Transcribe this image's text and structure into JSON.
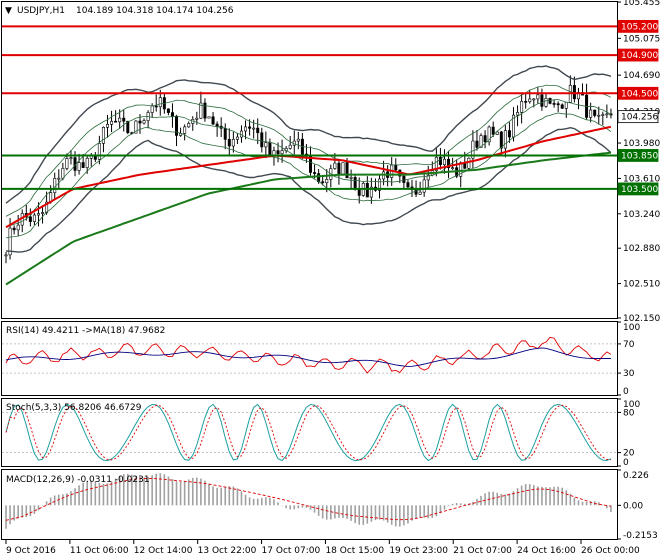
{
  "header": {
    "arrow": "▼",
    "symbol": "USDJPY,H1",
    "ohlc": "104.189 104.318 104.174 104.256"
  },
  "main_price_axis": [
    "105.455",
    "105.075",
    "104.690",
    "104.310",
    "103.980",
    "103.610",
    "103.240",
    "102.880",
    "102.510",
    "102.150"
  ],
  "price_tags": [
    {
      "label": "105.200",
      "value": 105.2,
      "kind": "level"
    },
    {
      "label": "104.900",
      "value": 104.9,
      "kind": "level"
    },
    {
      "label": "104.500",
      "value": 104.5,
      "kind": "level"
    },
    {
      "label": "104.256",
      "value": 104.256,
      "kind": "current"
    },
    {
      "label": "103.850",
      "value": 103.85,
      "kind": "support"
    },
    {
      "label": "103.500",
      "value": 103.5,
      "kind": "support"
    }
  ],
  "rsi": {
    "title": "RSI(14) 49.4211  ->MA(18) 47.9682",
    "axis": [
      "100",
      "70",
      "30",
      "0"
    ]
  },
  "stoch": {
    "title": "Stoch(5,3,3) 56.8206 46.6729",
    "axis": [
      "100",
      "80",
      "20",
      "0"
    ]
  },
  "macd": {
    "title": "MACD(12,26,9) -0.0311 -0.0231",
    "axis": [
      "0.226",
      "0.00",
      "-0.2153"
    ]
  },
  "time_axis": [
    "9 Oct 2016",
    "11 Oct 06:00",
    "12 Oct 14:00",
    "13 Oct 22:00",
    "17 Oct 07:00",
    "18 Oct 15:00",
    "19 Oct 23:00",
    "21 Oct 07:00",
    "24 Oct 16:00",
    "26 Oct 00:00"
  ],
  "colors": {
    "level": "#e00000",
    "support": "#007000",
    "ma_red": "#e00000",
    "ma_green": "#1a7a1a",
    "bands": "#404850",
    "candle": "#000000",
    "rsi": "#e00000",
    "rsi_ma": "#000080",
    "stoch_main": "#20a0a0",
    "stoch_signal": "#e00000",
    "macd_hist": "#a0a0a0",
    "macd_signal": "#e00000"
  },
  "chart_data": [
    {
      "type": "line",
      "title": "USDJPY,H1",
      "note": "candlestick price panel",
      "ylim": [
        102.15,
        105.455
      ],
      "x": [
        "9 Oct 2016",
        "11 Oct 06:00",
        "12 Oct 14:00",
        "13 Oct 22:00",
        "17 Oct 07:00",
        "18 Oct 15:00",
        "19 Oct 23:00",
        "21 Oct 07:00",
        "24 Oct 16:00",
        "26 Oct 00:00"
      ],
      "series": [
        {
          "values": [
            102.9,
            103.75,
            104.3,
            104.2,
            103.95,
            103.6,
            103.55,
            103.9,
            104.5,
            104.256
          ]
        },
        {
          "values": [
            103.1,
            103.5,
            103.65,
            103.75,
            103.85,
            103.8,
            103.65,
            103.8,
            104.0,
            104.15
          ]
        },
        {
          "values": [
            102.5,
            102.95,
            103.2,
            103.45,
            103.6,
            103.65,
            103.65,
            103.7,
            103.8,
            103.88
          ]
        }
      ],
      "levels": [
        105.2,
        104.9,
        104.5,
        103.85,
        103.5
      ]
    },
    {
      "type": "line",
      "ylim": [
        0,
        100
      ],
      "series": [
        {
          "values": [
            45,
            55,
            62,
            58,
            50,
            42,
            38,
            55,
            72,
            49.42
          ]
        },
        {
          "values": [
            48,
            52,
            58,
            56,
            52,
            46,
            42,
            50,
            62,
            47.97
          ]
        }
      ]
    },
    {
      "type": "line",
      "ylim": [
        0,
        100
      ],
      "series": [
        {
          "values": [
            30,
            75,
            85,
            60,
            40,
            20,
            55,
            70,
            90,
            56.82
          ]
        },
        {
          "values": [
            35,
            70,
            80,
            62,
            45,
            25,
            50,
            65,
            85,
            46.67
          ]
        }
      ]
    },
    {
      "type": "bar",
      "ylim": [
        -0.2153,
        0.226
      ],
      "series": [
        {
          "values": [
            -0.15,
            0.12,
            0.2,
            0.15,
            0.02,
            -0.1,
            -0.12,
            0.05,
            0.14,
            -0.0311
          ]
        },
        {
          "values": [
            -0.12,
            0.08,
            0.18,
            0.14,
            0.05,
            -0.06,
            -0.1,
            0.02,
            0.12,
            -0.0231
          ]
        }
      ]
    }
  ]
}
